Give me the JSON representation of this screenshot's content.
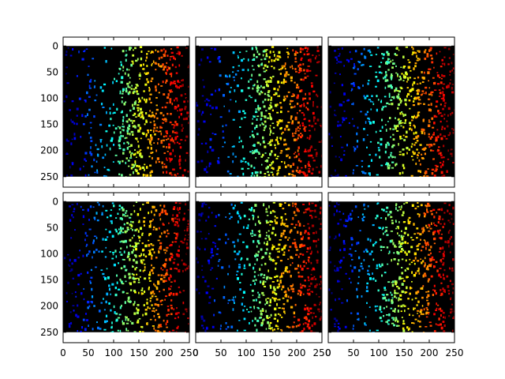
{
  "chart_data": [
    {
      "type": "heatmap",
      "row": 0,
      "col": 0,
      "seed": 11,
      "xlim": [
        0,
        250
      ],
      "ylim": [
        270,
        -17
      ],
      "image_extent": [
        0,
        250,
        250,
        0
      ],
      "background": "#000000",
      "colormap": "jet",
      "x_ticks": [],
      "y_ticks": [
        "0",
        "50",
        "100",
        "150",
        "200",
        "250"
      ]
    },
    {
      "type": "heatmap",
      "row": 0,
      "col": 1,
      "seed": 12,
      "xlim": [
        0,
        250
      ],
      "ylim": [
        270,
        -17
      ],
      "image_extent": [
        0,
        250,
        250,
        0
      ],
      "background": "#000000",
      "colormap": "jet",
      "x_ticks": [],
      "y_ticks": []
    },
    {
      "type": "heatmap",
      "row": 0,
      "col": 2,
      "seed": 13,
      "xlim": [
        0,
        250
      ],
      "ylim": [
        270,
        -17
      ],
      "image_extent": [
        0,
        250,
        250,
        0
      ],
      "background": "#000000",
      "colormap": "jet",
      "x_ticks": [],
      "y_ticks": []
    },
    {
      "type": "heatmap",
      "row": 1,
      "col": 0,
      "seed": 21,
      "xlim": [
        0,
        250
      ],
      "ylim": [
        270,
        -17
      ],
      "image_extent": [
        0,
        250,
        250,
        0
      ],
      "background": "#000000",
      "colormap": "jet",
      "x_ticks": [
        "0",
        "50",
        "100",
        "150",
        "200",
        "250"
      ],
      "y_ticks": [
        "0",
        "50",
        "100",
        "150",
        "200",
        "250"
      ]
    },
    {
      "type": "heatmap",
      "row": 1,
      "col": 1,
      "seed": 22,
      "xlim": [
        0,
        250
      ],
      "ylim": [
        270,
        -17
      ],
      "image_extent": [
        0,
        250,
        250,
        0
      ],
      "background": "#000000",
      "colormap": "jet",
      "x_ticks": [
        "0",
        "50",
        "100",
        "150",
        "200",
        "250"
      ],
      "y_ticks": []
    },
    {
      "type": "heatmap",
      "row": 1,
      "col": 2,
      "seed": 23,
      "xlim": [
        0,
        250
      ],
      "ylim": [
        270,
        -17
      ],
      "image_extent": [
        0,
        250,
        250,
        0
      ],
      "background": "#000000",
      "colormap": "jet",
      "x_ticks": [
        "0",
        "50",
        "100",
        "150",
        "200",
        "250"
      ],
      "y_ticks": []
    }
  ]
}
